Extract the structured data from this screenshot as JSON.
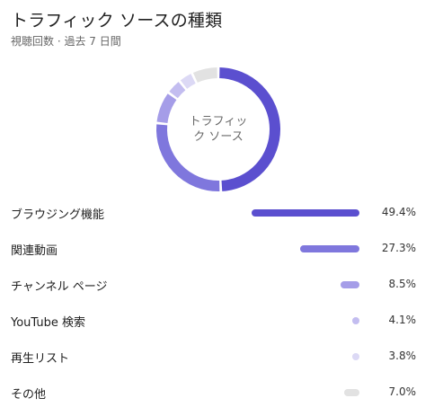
{
  "card": {
    "title": "トラフィック ソースの種類",
    "subtitle": "視聴回数 · 過去 7 日間"
  },
  "donut": {
    "center_line1": "トラフィッ",
    "center_line2": "ク ソース"
  },
  "chart_data": {
    "type": "pie",
    "categories": [
      "ブラウジング機能",
      "関連動画",
      "チャンネル ページ",
      "YouTube 検索",
      "再生リスト",
      "その他"
    ],
    "values": [
      49.4,
      27.3,
      8.5,
      4.1,
      3.8,
      7.0
    ],
    "value_labels": [
      "49.4%",
      "27.3%",
      "8.5%",
      "4.1%",
      "3.8%",
      "7.0%"
    ],
    "colors": [
      "#5b4fcf",
      "#7f77dd",
      "#a59de8",
      "#c3bdf0",
      "#dcd9f5",
      "#e2e2e2"
    ]
  },
  "rows": [
    {
      "label": "ブラウジング機能",
      "percent": "49.4%",
      "value": 49.4,
      "color": "#5b4fcf"
    },
    {
      "label": "関連動画",
      "percent": "27.3%",
      "value": 27.3,
      "color": "#7f77dd"
    },
    {
      "label": "チャンネル ページ",
      "percent": "8.5%",
      "value": 8.5,
      "color": "#a59de8"
    },
    {
      "label": "YouTube 検索",
      "percent": "4.1%",
      "value": 4.1,
      "color": "#c3bdf0"
    },
    {
      "label": "再生リスト",
      "percent": "3.8%",
      "value": 3.8,
      "color": "#dcd9f5"
    },
    {
      "label": "その他",
      "percent": "7.0%",
      "value": 7.0,
      "color": "#e2e2e2"
    }
  ]
}
